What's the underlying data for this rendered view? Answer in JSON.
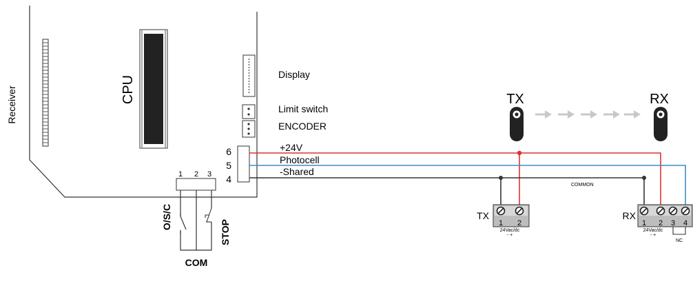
{
  "board": {
    "receiver_label": "Receiver",
    "cpu_label": "CPU",
    "display_label": "Display",
    "limit_switch_label": "Limit switch",
    "encoder_label": "ENCODER",
    "pins": [
      "6",
      "5",
      "4"
    ]
  },
  "terminal_block": {
    "numbers": [
      "1",
      "2",
      "3"
    ],
    "osc_label": "O/S/C",
    "stop_label": "STOP",
    "com_label": "COM"
  },
  "wires": [
    {
      "label": "+24V",
      "color": "#e03030"
    },
    {
      "label": "Photocell",
      "color": "#3b8ec8"
    },
    {
      "label": "-Shared",
      "color": "#333333"
    }
  ],
  "common_label": "COMMON",
  "photocells": {
    "tx_title": "TX",
    "rx_title": "RX",
    "tx_terminal": {
      "label": "TX",
      "numbers": [
        "1",
        "2"
      ],
      "supply": "24Vac/dc",
      "polarity": "- +"
    },
    "rx_terminal": {
      "label": "RX",
      "numbers": [
        "1",
        "2",
        "3",
        "4"
      ],
      "supply": "24Vac/dc",
      "polarity": "- +",
      "nc": "NC"
    }
  },
  "colors": {
    "beam_arrow": "#c8c8c8",
    "board_line": "#333333"
  }
}
